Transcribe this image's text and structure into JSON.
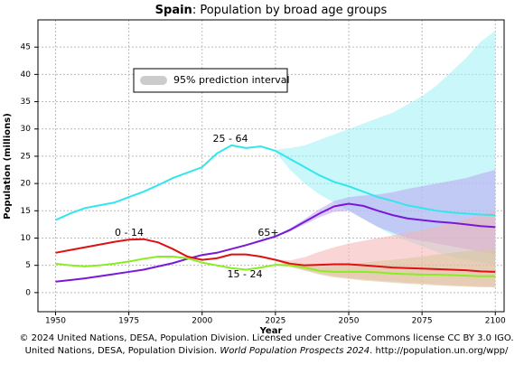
{
  "chart_data": {
    "type": "line",
    "title_bold": "Spain",
    "title_rest": ": Population by broad age groups",
    "x_label": "Year",
    "y_label": "Population (millions)",
    "legend_label": "95% prediction interval",
    "footer_line1": "© 2024 United Nations, DESA, Population Division. Licensed under Creative Commons license CC BY 3.0 IGO.",
    "footer_line2_a": "United Nations, DESA, Population Division. ",
    "footer_line2_italic": "World Population Prospects 2024",
    "footer_line2_b": ". http://population.un.org/wpp/",
    "xlim": [
      1944,
      2103
    ],
    "ylim": [
      -3.5,
      50
    ],
    "xticks": [
      1950,
      1975,
      2000,
      2025,
      2050,
      2075,
      2100
    ],
    "yticks": [
      0,
      5,
      10,
      15,
      20,
      25,
      30,
      35,
      40,
      45
    ],
    "grid": true,
    "x": [
      1950,
      1955,
      1960,
      1965,
      1970,
      1975,
      1980,
      1985,
      1990,
      1995,
      2000,
      2005,
      2010,
      2015,
      2020,
      2025,
      2030,
      2035,
      2040,
      2045,
      2050,
      2055,
      2060,
      2065,
      2070,
      2075,
      2080,
      2085,
      2090,
      2095,
      2100
    ],
    "band_x": [
      2025,
      2030,
      2035,
      2040,
      2045,
      2050,
      2055,
      2060,
      2065,
      2070,
      2075,
      2080,
      2085,
      2090,
      2095,
      2100
    ],
    "series": [
      {
        "name": "25 - 64",
        "color": "#33e6ee",
        "band_color": "#9ff0f4",
        "values": [
          13.3,
          14.5,
          15.5,
          16,
          16.5,
          17.5,
          18.5,
          19.7,
          21,
          22,
          23,
          25.5,
          27,
          26.5,
          26.8,
          26,
          24.5,
          23,
          21.5,
          20.3,
          19.5,
          18.5,
          17.5,
          16.8,
          16,
          15.5,
          15,
          14.7,
          14.5,
          14.3,
          14.2
        ],
        "upper": [
          26.2,
          26.5,
          27,
          28,
          29,
          30,
          31,
          32,
          33,
          34.5,
          36,
          38,
          40.5,
          43,
          46,
          48
        ],
        "lower": [
          25.8,
          22.5,
          20,
          18,
          16.5,
          15,
          13.5,
          12,
          10.5,
          9.5,
          8.5,
          7.5,
          6.5,
          6,
          5.5,
          5
        ]
      },
      {
        "name": "65+",
        "color": "#7a18d8",
        "band_color": "#b9a6f0",
        "values": [
          2,
          2.3,
          2.6,
          3,
          3.4,
          3.8,
          4.2,
          4.8,
          5.4,
          6.2,
          6.9,
          7.3,
          8,
          8.7,
          9.5,
          10.3,
          11.5,
          13,
          14.5,
          15.8,
          16.3,
          15.9,
          15,
          14.2,
          13.6,
          13.3,
          13,
          12.8,
          12.5,
          12.2,
          12
        ],
        "upper": [
          10.4,
          11.8,
          13.5,
          15.3,
          16.8,
          17.5,
          17.8,
          18,
          18.4,
          19,
          19.5,
          20,
          20.5,
          21,
          21.8,
          22.5
        ],
        "lower": [
          10.2,
          11.2,
          12.5,
          13.8,
          14.8,
          15,
          13.5,
          12,
          11,
          10,
          9.5,
          9,
          8.5,
          8,
          7.5,
          7
        ]
      },
      {
        "name": "0 - 14",
        "color": "#dd1111",
        "band_color": "#f4b3b3",
        "values": [
          7.3,
          7.8,
          8.3,
          8.8,
          9.3,
          9.7,
          9.8,
          9.2,
          8,
          6.6,
          6,
          6.3,
          7,
          7,
          6.6,
          6,
          5.3,
          5,
          5.1,
          5.2,
          5.2,
          5,
          4.8,
          4.6,
          4.5,
          4.4,
          4.3,
          4.2,
          4.1,
          3.9,
          3.8
        ],
        "upper": [
          6.1,
          5.9,
          6.5,
          7.5,
          8.3,
          9,
          9.5,
          10,
          10.5,
          11,
          11.5,
          12,
          12.8,
          13.5,
          14.2,
          15
        ],
        "lower": [
          5.9,
          4.8,
          4,
          3.5,
          3,
          2.7,
          2.4,
          2.2,
          2,
          1.8,
          1.7,
          1.5,
          1.3,
          1.2,
          1.1,
          1
        ]
      },
      {
        "name": "15 - 24",
        "color": "#88ee22",
        "band_color": "#d8c79a",
        "values": [
          5.3,
          5,
          4.8,
          5,
          5.3,
          5.7,
          6.2,
          6.6,
          6.6,
          6.3,
          5.5,
          5,
          4.5,
          4.2,
          4.6,
          5.1,
          5,
          4.6,
          4,
          3.8,
          3.8,
          3.8,
          3.7,
          3.5,
          3.4,
          3.3,
          3.3,
          3.2,
          3.1,
          3,
          3
        ],
        "upper": [
          5.2,
          5.3,
          5.1,
          4.8,
          4.9,
          5.2,
          5.5,
          5.8,
          6,
          6.3,
          6.6,
          7,
          7.3,
          7.6,
          7.8,
          8
        ],
        "lower": [
          5,
          4.7,
          4.1,
          3.3,
          2.8,
          2.5,
          2.2,
          2,
          1.8,
          1.6,
          1.5,
          1.3,
          1.2,
          1.1,
          1,
          1
        ]
      }
    ]
  }
}
